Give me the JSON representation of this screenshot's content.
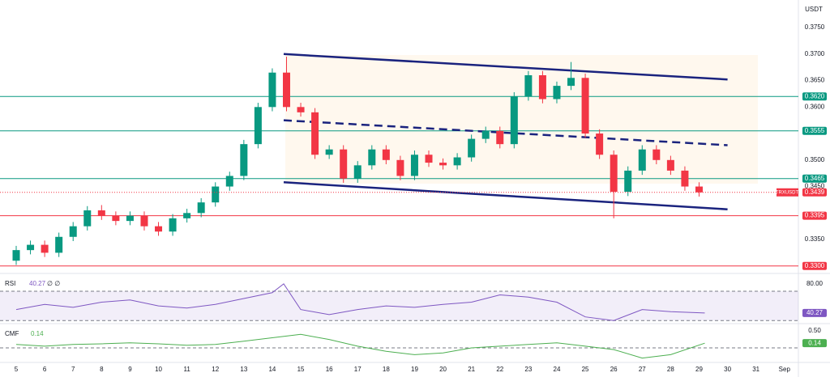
{
  "chart_data": [
    {
      "type": "candlestick",
      "currency": "USDT",
      "symbol": "TRXUSDT",
      "x": [
        5,
        5.5,
        6,
        6.5,
        7,
        7.5,
        8,
        8.5,
        9,
        9.5,
        10,
        10.5,
        11,
        11.5,
        12,
        12.5,
        13,
        13.5,
        14,
        14.5,
        15,
        15.5,
        16,
        16.5,
        17,
        17.5,
        18,
        18.5,
        19,
        19.5,
        20,
        20.5,
        21,
        21.5,
        22,
        22.5,
        23,
        23.5,
        24,
        24.5,
        25,
        25.5,
        26,
        26.5,
        27,
        27.5,
        28,
        28.5,
        29
      ],
      "open": [
        0.331,
        0.333,
        0.334,
        0.3325,
        0.3355,
        0.3375,
        0.3405,
        0.3395,
        0.3385,
        0.3395,
        0.3375,
        0.3365,
        0.339,
        0.34,
        0.342,
        0.345,
        0.347,
        0.353,
        0.36,
        0.3665,
        0.36,
        0.359,
        0.351,
        0.352,
        0.3465,
        0.349,
        0.352,
        0.35,
        0.347,
        0.351,
        0.3495,
        0.349,
        0.3505,
        0.354,
        0.3555,
        0.353,
        0.362,
        0.366,
        0.3615,
        0.364,
        0.3655,
        0.355,
        0.351,
        0.344,
        0.348,
        0.352,
        0.35,
        0.348,
        0.345
      ],
      "high": [
        0.3338,
        0.3348,
        0.3348,
        0.3363,
        0.3383,
        0.3413,
        0.3415,
        0.3403,
        0.3403,
        0.3403,
        0.3383,
        0.3398,
        0.3408,
        0.3428,
        0.3458,
        0.3478,
        0.3538,
        0.3608,
        0.3673,
        0.3695,
        0.3608,
        0.3598,
        0.3528,
        0.3528,
        0.3498,
        0.3528,
        0.3528,
        0.3508,
        0.3518,
        0.3518,
        0.3503,
        0.3513,
        0.3548,
        0.3563,
        0.3563,
        0.3628,
        0.3668,
        0.3668,
        0.3648,
        0.3685,
        0.3663,
        0.3558,
        0.3518,
        0.3488,
        0.3528,
        0.3528,
        0.3508,
        0.3488,
        0.3458
      ],
      "low": [
        0.3302,
        0.3322,
        0.3317,
        0.3317,
        0.3347,
        0.3367,
        0.3387,
        0.3377,
        0.3377,
        0.3367,
        0.3357,
        0.3357,
        0.3382,
        0.3392,
        0.3412,
        0.3442,
        0.3462,
        0.3522,
        0.3592,
        0.3592,
        0.3582,
        0.3502,
        0.3502,
        0.3457,
        0.3457,
        0.3482,
        0.3492,
        0.3462,
        0.3462,
        0.3487,
        0.3482,
        0.3482,
        0.3497,
        0.3532,
        0.3522,
        0.3522,
        0.3612,
        0.3607,
        0.3607,
        0.3632,
        0.3542,
        0.3502,
        0.339,
        0.3432,
        0.3472,
        0.3492,
        0.3472,
        0.3442,
        0.3431
      ],
      "close": [
        0.333,
        0.334,
        0.3325,
        0.3355,
        0.3375,
        0.3405,
        0.3395,
        0.3385,
        0.3395,
        0.3375,
        0.3365,
        0.339,
        0.34,
        0.342,
        0.345,
        0.347,
        0.353,
        0.36,
        0.3665,
        0.36,
        0.359,
        0.351,
        0.352,
        0.3465,
        0.349,
        0.352,
        0.35,
        0.347,
        0.351,
        0.3495,
        0.349,
        0.3505,
        0.354,
        0.3555,
        0.353,
        0.362,
        0.366,
        0.3615,
        0.364,
        0.3655,
        0.355,
        0.351,
        0.344,
        0.348,
        0.352,
        0.35,
        0.348,
        0.345,
        0.3439
      ],
      "up_color": "#089981",
      "down_color": "#f23645",
      "xlim": [
        4.43,
        32.49
      ],
      "xticks": [
        5,
        6,
        7,
        8,
        9,
        10,
        11,
        12,
        13,
        14,
        15,
        16,
        17,
        18,
        19,
        20,
        21,
        22,
        23,
        24,
        25,
        26,
        27,
        28,
        29,
        30,
        31,
        {
          "value": 32,
          "label": "Sep"
        }
      ],
      "ylim": [
        0.3289,
        0.3802
      ],
      "yticks": [
        {
          "value": 0.375,
          "label": "0.3750"
        },
        {
          "value": 0.37,
          "label": "0.3700"
        },
        {
          "value": 0.365,
          "label": "0.3650"
        },
        {
          "value": 0.36,
          "label": "0.3600"
        },
        {
          "value": 0.35,
          "label": "0.3500"
        },
        {
          "value": 0.345,
          "label": "0.3450"
        },
        {
          "value": 0.335,
          "label": "0.3350"
        }
      ],
      "levels": [
        {
          "value": 0.362,
          "label": "0.3620",
          "color": "#089981"
        },
        {
          "value": 0.3555,
          "label": "0.3555",
          "color": "#089981"
        },
        {
          "value": 0.3465,
          "label": "0.3465",
          "color": "#089981"
        },
        {
          "value": 0.3395,
          "label": "0.3395",
          "color": "#f23645"
        },
        {
          "value": 0.33,
          "label": "0.3300",
          "color": "#f23645"
        }
      ],
      "trendlines": [
        {
          "x": [
            14.4,
            30
          ],
          "y": [
            0.37,
            0.3652
          ],
          "dashed": false
        },
        {
          "x": [
            14.4,
            30
          ],
          "y": [
            0.3575,
            0.3528
          ],
          "dashed": true
        },
        {
          "x": [
            14.4,
            30
          ],
          "y": [
            0.3458,
            0.3407
          ],
          "dashed": false
        }
      ],
      "trendline_color": "#1a237e"
    },
    {
      "type": "line",
      "name": "RSI",
      "params": "∅ ∅",
      "color": "#7e57c2",
      "x": [
        5,
        6,
        7,
        8,
        9,
        10,
        11,
        12,
        13,
        14,
        14.4,
        15,
        16,
        17,
        18,
        19,
        20,
        21,
        22,
        23,
        24,
        25,
        26,
        27,
        28,
        29.2
      ],
      "values": [
        45,
        52,
        48,
        55,
        58,
        50,
        47,
        52,
        60,
        68,
        80,
        45,
        38,
        45,
        50,
        48,
        52,
        55,
        65,
        62,
        55,
        35,
        30,
        45,
        42,
        40.27
      ],
      "value_labels": [
        null,
        null,
        null,
        null,
        null,
        null,
        null,
        null,
        null,
        null,
        null,
        null,
        null,
        null,
        null,
        null,
        null,
        null,
        null,
        null,
        null,
        null,
        null,
        null,
        null,
        "40.27"
      ],
      "bands": [
        70,
        30
      ],
      "ylim": [
        28,
        92
      ],
      "yticks": [
        {
          "value": 80,
          "label": "80.00"
        }
      ]
    },
    {
      "type": "line",
      "name": "CMF",
      "color": "#4caf50",
      "x": [
        5,
        6,
        7,
        8,
        9,
        10,
        11,
        12,
        13,
        14,
        15,
        16,
        17,
        18,
        19,
        20,
        21,
        22,
        23,
        24,
        25,
        26,
        27,
        28,
        29.2
      ],
      "values": [
        0.1,
        0.05,
        0.1,
        0.12,
        0.15,
        0.12,
        0.08,
        0.1,
        0.2,
        0.3,
        0.4,
        0.25,
        0.05,
        -0.1,
        -0.2,
        -0.15,
        0,
        0.05,
        0.1,
        0.15,
        0.05,
        -0.05,
        -0.3,
        -0.2,
        0.14
      ],
      "bands": [
        0
      ],
      "ylim": [
        -0.43,
        0.67
      ],
      "yticks": [
        {
          "value": 0.5,
          "label": "0.50"
        }
      ]
    }
  ]
}
